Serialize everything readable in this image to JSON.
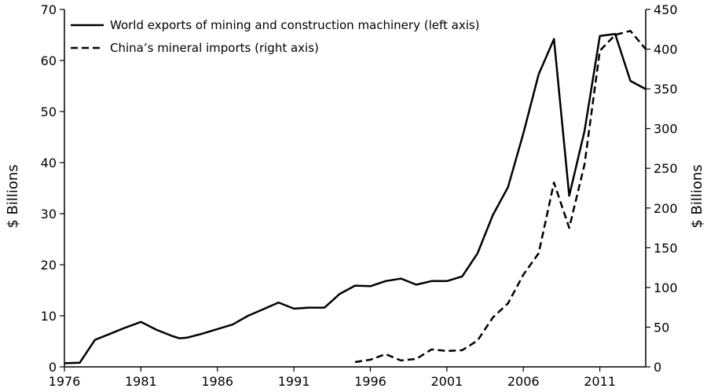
{
  "chart_data": {
    "type": "line",
    "title": "",
    "xlabel": "",
    "ylabel_left": "$ Billions",
    "ylabel_right": "$ Billions",
    "xlim": [
      1976,
      2014
    ],
    "ylim_left": [
      0,
      70
    ],
    "ylim_right": [
      0,
      450
    ],
    "x_ticks": [
      1976,
      1981,
      1986,
      1991,
      1996,
      2001,
      2006,
      2011
    ],
    "y_ticks_left": [
      0,
      10,
      20,
      30,
      40,
      50,
      60,
      70
    ],
    "y_ticks_right": [
      0,
      50,
      100,
      150,
      200,
      250,
      300,
      350,
      400,
      450
    ],
    "grid": false,
    "legend_position": "top-left",
    "series": [
      {
        "name": "World exports of mining and construction machinery (left axis)",
        "axis": "left",
        "style": "solid",
        "x": [
          1976,
          1977,
          1978,
          1979,
          1980,
          1981,
          1982,
          1983,
          1983.5,
          1984,
          1985,
          1986,
          1987,
          1988,
          1989,
          1990,
          1991,
          1992,
          1993,
          1994,
          1995,
          1996,
          1997,
          1998,
          1999,
          2000,
          2001,
          2002,
          2003,
          2004,
          2005,
          2006,
          2007,
          2008,
          2009,
          2010,
          2011,
          2012,
          2013,
          2014
        ],
        "values": [
          0.7,
          0.8,
          5.3,
          6.5,
          7.7,
          8.8,
          7.3,
          6.1,
          5.6,
          5.7,
          6.5,
          7.4,
          8.3,
          10.0,
          11.3,
          12.6,
          11.4,
          11.6,
          11.6,
          14.3,
          15.9,
          15.8,
          16.8,
          17.3,
          16.1,
          16.8,
          16.8,
          17.7,
          22.2,
          29.7,
          35.2,
          45.7,
          57.3,
          64.2,
          33.5,
          46.2,
          64.8,
          65.2,
          56.0,
          54.4
        ]
      },
      {
        "name": "China’s mineral imports (right axis)",
        "axis": "right",
        "style": "dashed",
        "x": [
          1995,
          1996,
          1997,
          1998,
          1999,
          2000,
          2001,
          2002,
          2003,
          2004,
          2005,
          2006,
          2007,
          2008,
          2009,
          2010,
          2011,
          2012,
          2013,
          2014
        ],
        "values": [
          6,
          9,
          16,
          8,
          10,
          22,
          20,
          21,
          33,
          62,
          80,
          116,
          143,
          232,
          175,
          255,
          398,
          418,
          423,
          400
        ]
      }
    ]
  }
}
